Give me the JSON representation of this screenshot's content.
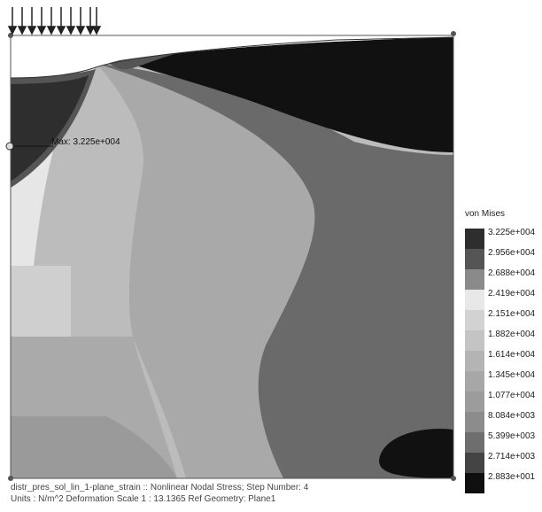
{
  "legend": {
    "title": "von Mises",
    "entries": [
      {
        "label": "3.225e+004",
        "color": "#2e2e2e"
      },
      {
        "label": "2.956e+004",
        "color": "#555555"
      },
      {
        "label": "2.688e+004",
        "color": "#8a8a8a"
      },
      {
        "label": "2.419e+004",
        "color": "#e8e8e8"
      },
      {
        "label": "2.151e+004",
        "color": "#d2d2d2"
      },
      {
        "label": "1.882e+004",
        "color": "#c4c4c4"
      },
      {
        "label": "1.614e+004",
        "color": "#b4b4b4"
      },
      {
        "label": "1.345e+004",
        "color": "#a7a7a7"
      },
      {
        "label": "1.077e+004",
        "color": "#9c9c9c"
      },
      {
        "label": "8.084e+003",
        "color": "#8c8c8c"
      },
      {
        "label": "5.399e+003",
        "color": "#6e6e6e"
      },
      {
        "label": "2.714e+003",
        "color": "#444444"
      },
      {
        "label": "2.883e+001",
        "color": "#0f0f0f"
      }
    ]
  },
  "max_marker": {
    "label": "Max: 3.225e+004"
  },
  "footer": {
    "line1": "distr_pres_sol_lin_1-plane_strain :: Nonlinear Nodal Stress; Step Number: 4",
    "line2": "Units : N/m^2   Deformation Scale  1 : 13.1365 Ref Geometry: Plane1"
  }
}
